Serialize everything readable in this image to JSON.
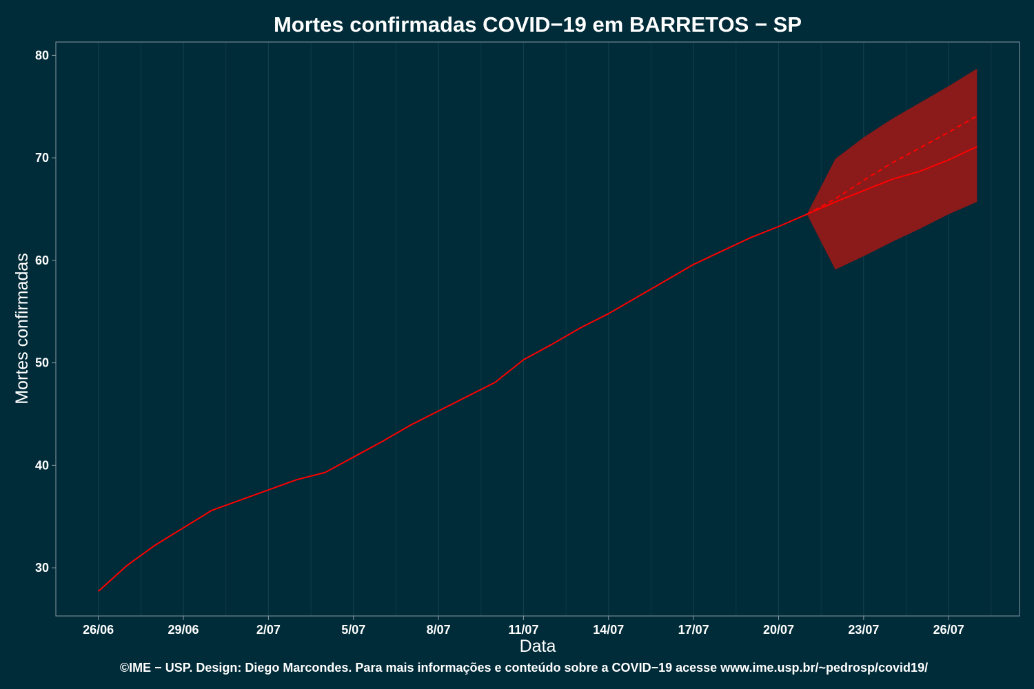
{
  "chart_data": {
    "type": "line",
    "title": "Mortes confirmadas COVID−19 em BARRETOS − SP",
    "xlabel": "Data",
    "ylabel": "Mortes confirmadas",
    "caption": "©IME − USP. Design: Diego Marcondes. Para mais informações e conteúdo sobre a COVID−19 acesse www.ime.usp.br/~pedrosp/covid19/",
    "x_start": "2020-06-26",
    "xlim": [
      "2020-06-25",
      "2020-07-28"
    ],
    "ylim": [
      25.3,
      81.3
    ],
    "x_ticks": [
      {
        "date": "2020-06-26",
        "label": "26/06"
      },
      {
        "date": "2020-06-29",
        "label": "29/06"
      },
      {
        "date": "2020-07-02",
        "label": "2/07"
      },
      {
        "date": "2020-07-05",
        "label": "5/07"
      },
      {
        "date": "2020-07-08",
        "label": "8/07"
      },
      {
        "date": "2020-07-11",
        "label": "11/07"
      },
      {
        "date": "2020-07-14",
        "label": "14/07"
      },
      {
        "date": "2020-07-17",
        "label": "17/07"
      },
      {
        "date": "2020-07-20",
        "label": "20/07"
      },
      {
        "date": "2020-07-23",
        "label": "23/07"
      },
      {
        "date": "2020-07-26",
        "label": "26/07"
      }
    ],
    "y_ticks": [
      {
        "value": 30,
        "label": "30"
      },
      {
        "value": 40,
        "label": "40"
      },
      {
        "value": 50,
        "label": "50"
      },
      {
        "value": 60,
        "label": "60"
      },
      {
        "value": 70,
        "label": "70"
      },
      {
        "value": 80,
        "label": "80"
      }
    ],
    "grid": true,
    "legend": "none",
    "series": [
      {
        "style": "solid",
        "color": "#ff0000",
        "points": [
          [
            "2020-06-26",
            27.7
          ],
          [
            "2020-06-27",
            30.2
          ],
          [
            "2020-06-28",
            32.2
          ],
          [
            "2020-06-29",
            33.9
          ],
          [
            "2020-06-30",
            35.6
          ],
          [
            "2020-07-01",
            36.6
          ],
          [
            "2020-07-02",
            37.6
          ],
          [
            "2020-07-03",
            38.6
          ],
          [
            "2020-07-04",
            39.3
          ],
          [
            "2020-07-05",
            40.8
          ],
          [
            "2020-07-06",
            42.3
          ],
          [
            "2020-07-07",
            43.9
          ],
          [
            "2020-07-08",
            45.3
          ],
          [
            "2020-07-09",
            46.7
          ],
          [
            "2020-07-10",
            48.1
          ],
          [
            "2020-07-11",
            50.3
          ],
          [
            "2020-07-12",
            51.8
          ],
          [
            "2020-07-13",
            53.4
          ],
          [
            "2020-07-14",
            54.8
          ],
          [
            "2020-07-15",
            56.4
          ],
          [
            "2020-07-16",
            58.0
          ],
          [
            "2020-07-17",
            59.6
          ],
          [
            "2020-07-18",
            60.9
          ],
          [
            "2020-07-19",
            62.2
          ],
          [
            "2020-07-20",
            63.3
          ],
          [
            "2020-07-21",
            64.5
          ],
          [
            "2020-07-22",
            65.7
          ],
          [
            "2020-07-23",
            66.8
          ],
          [
            "2020-07-24",
            67.9
          ],
          [
            "2020-07-25",
            68.7
          ],
          [
            "2020-07-26",
            69.8
          ],
          [
            "2020-07-27",
            71.1
          ]
        ]
      },
      {
        "style": "dashed",
        "color": "#ff0000",
        "points": [
          [
            "2020-07-21",
            64.5
          ],
          [
            "2020-07-22",
            66.0
          ],
          [
            "2020-07-23",
            67.8
          ],
          [
            "2020-07-24",
            69.5
          ],
          [
            "2020-07-25",
            71.0
          ],
          [
            "2020-07-26",
            72.5
          ],
          [
            "2020-07-27",
            74.1
          ]
        ]
      }
    ],
    "band": {
      "color": "#8b1a1a",
      "points": [
        [
          "2020-07-21",
          64.5,
          64.5
        ],
        [
          "2020-07-22",
          59.1,
          69.9
        ],
        [
          "2020-07-23",
          60.4,
          72.0
        ],
        [
          "2020-07-24",
          61.8,
          73.8
        ],
        [
          "2020-07-25",
          63.1,
          75.4
        ],
        [
          "2020-07-26",
          64.5,
          77.0
        ],
        [
          "2020-07-27",
          65.7,
          78.7
        ]
      ]
    }
  }
}
